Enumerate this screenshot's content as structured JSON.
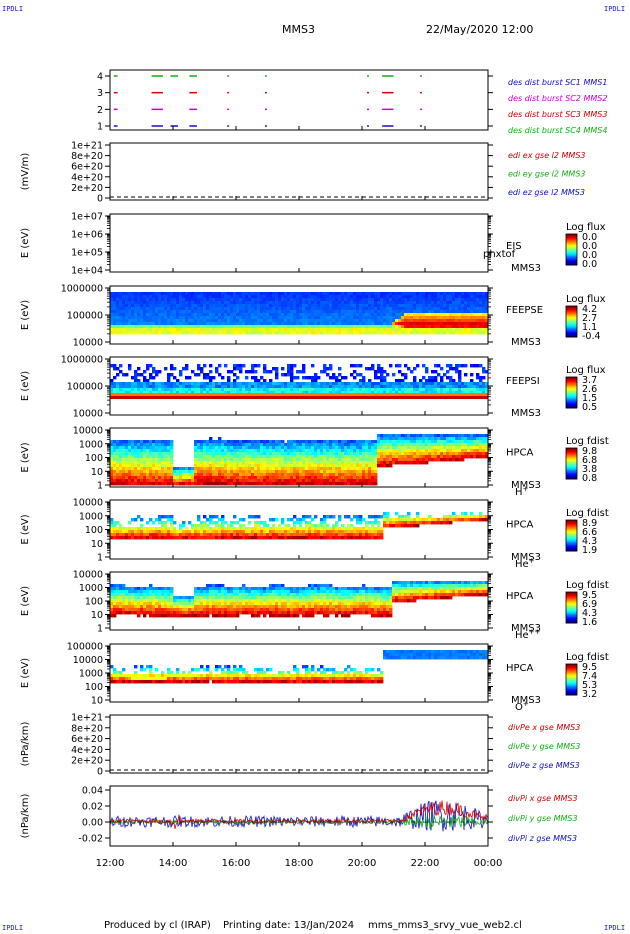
{
  "corner_label": "IPDLI",
  "header": {
    "title": "MMS3",
    "date": "22/May/2020 12:00"
  },
  "footer": {
    "produced_by": "Produced by cl (IRAP)",
    "printing_date": "Printing date: 13/Jan/2024",
    "file_name": "mms_mms3_srvy_vue_web2.cl"
  },
  "colors": {
    "mms1": "#1010c0",
    "mms2": "#d000d0",
    "mms3": "#d00000",
    "mms4": "#10b010",
    "x": "#d00000",
    "y": "#10b010",
    "z": "#1010c0"
  },
  "chart_data": {
    "type": "stacked-time-series",
    "x_ticks": [
      "12:00",
      "14:00",
      "16:00",
      "18:00",
      "20:00",
      "22:00",
      "00:00"
    ],
    "panels": [
      {
        "id": "burst",
        "type": "timeline",
        "ylabel": "",
        "y_ticks": [
          "4",
          "3",
          "2",
          "1"
        ],
        "legend": [
          {
            "text": "des dist burst SC1 MMS1",
            "color": "#1010c0"
          },
          {
            "text": "des dist burst SC2 MMS2",
            "color": "#d000d0"
          },
          {
            "text": "des dist burst SC3 MMS3",
            "color": "#d00000"
          },
          {
            "text": "des dist burst SC4 MMS4",
            "color": "#10b010"
          }
        ]
      },
      {
        "id": "edi",
        "type": "line",
        "ylabel": "(mV/m)",
        "y_ticks": [
          "1e+21",
          "8e+20",
          "6e+20",
          "4e+20",
          "2e+20",
          "0"
        ],
        "legend": [
          {
            "text": "edi ex gse l2 MMS3",
            "color": "#d00000"
          },
          {
            "text": "edi ey gse l2 MMS3",
            "color": "#10b010"
          },
          {
            "text": "edi ez gse l2 MMS3",
            "color": "#1010c0"
          }
        ]
      },
      {
        "id": "eis",
        "type": "spectrogram",
        "ylabel": "E (eV)",
        "y_ticks": [
          "1e+07",
          "1e+06",
          "1e+05",
          "1e+04"
        ],
        "name": [
          "EIS",
          "MMS3"
        ],
        "overlay": "phxtof",
        "species": "",
        "cbar_title": "Log flux",
        "cbar_ticks": [
          "0.0",
          "0.0",
          "0.0",
          "0.0"
        ]
      },
      {
        "id": "feepse",
        "type": "spectrogram",
        "ylabel": "E (eV)",
        "y_ticks": [
          "1000000",
          "100000",
          "10000"
        ],
        "name": [
          "FEEPSE",
          "MMS3"
        ],
        "species": "",
        "cbar_title": "Log flux",
        "cbar_ticks": [
          "4.2",
          "2.7",
          "1.1",
          "-0.4"
        ]
      },
      {
        "id": "feepsi",
        "type": "spectrogram",
        "ylabel": "E (eV)",
        "y_ticks": [
          "1000000",
          "100000",
          "10000"
        ],
        "name": [
          "FEEPSI",
          "MMS3"
        ],
        "species": "",
        "cbar_title": "Log flux",
        "cbar_ticks": [
          "3.7",
          "2.6",
          "1.5",
          "0.5"
        ]
      },
      {
        "id": "hpca_h",
        "type": "spectrogram",
        "ylabel": "E (eV)",
        "y_ticks": [
          "10000",
          "1000",
          "100",
          "10",
          "1"
        ],
        "name": [
          "HPCA",
          "MMS3"
        ],
        "species": "H+",
        "cbar_title": "Log fdist",
        "cbar_ticks": [
          "9.8",
          "6.8",
          "3.8",
          "0.8"
        ]
      },
      {
        "id": "hpca_he",
        "type": "spectrogram",
        "ylabel": "E (eV)",
        "y_ticks": [
          "10000",
          "1000",
          "100",
          "10",
          "1"
        ],
        "name": [
          "HPCA",
          "MMS3"
        ],
        "species": "He+",
        "cbar_title": "Log fdist",
        "cbar_ticks": [
          "8.9",
          "6.6",
          "4.3",
          "1.9"
        ]
      },
      {
        "id": "hpca_hepp",
        "type": "spectrogram",
        "ylabel": "E (eV)",
        "y_ticks": [
          "10000",
          "1000",
          "100",
          "10",
          "1"
        ],
        "name": [
          "HPCA",
          "MMS3"
        ],
        "species": "He++",
        "cbar_title": "Log fdist",
        "cbar_ticks": [
          "9.5",
          "6.9",
          "4.3",
          "1.6"
        ]
      },
      {
        "id": "hpca_o",
        "type": "spectrogram",
        "ylabel": "E (eV)",
        "y_ticks": [
          "100000",
          "10000",
          "1000",
          "100",
          "10"
        ],
        "name": [
          "HPCA",
          "MMS3"
        ],
        "species": "O+",
        "cbar_title": "Log fdist",
        "cbar_ticks": [
          "9.5",
          "7.4",
          "5.3",
          "3.2"
        ]
      },
      {
        "id": "divpe",
        "type": "line",
        "ylabel": "(nPa/km)",
        "y_ticks": [
          "1e+21",
          "8e+20",
          "6e+20",
          "4e+20",
          "2e+20",
          "0"
        ],
        "legend": [
          {
            "text": "divPe x gse MMS3",
            "color": "#d00000"
          },
          {
            "text": "divPe y gse MMS3",
            "color": "#10b010"
          },
          {
            "text": "divPe z gse MMS3",
            "color": "#1010c0"
          }
        ]
      },
      {
        "id": "divpi",
        "type": "line",
        "ylabel": "(nPa/km)",
        "y_ticks": [
          "0.04",
          "0.02",
          "0.00",
          "-0.02"
        ],
        "ylim": [
          -0.03,
          0.045
        ],
        "legend": [
          {
            "text": "divPi x gse MMS3",
            "color": "#d00000"
          },
          {
            "text": "divPi y gse MMS3",
            "color": "#10b010"
          },
          {
            "text": "divPi z gse MMS3",
            "color": "#1010c0"
          }
        ]
      }
    ]
  }
}
